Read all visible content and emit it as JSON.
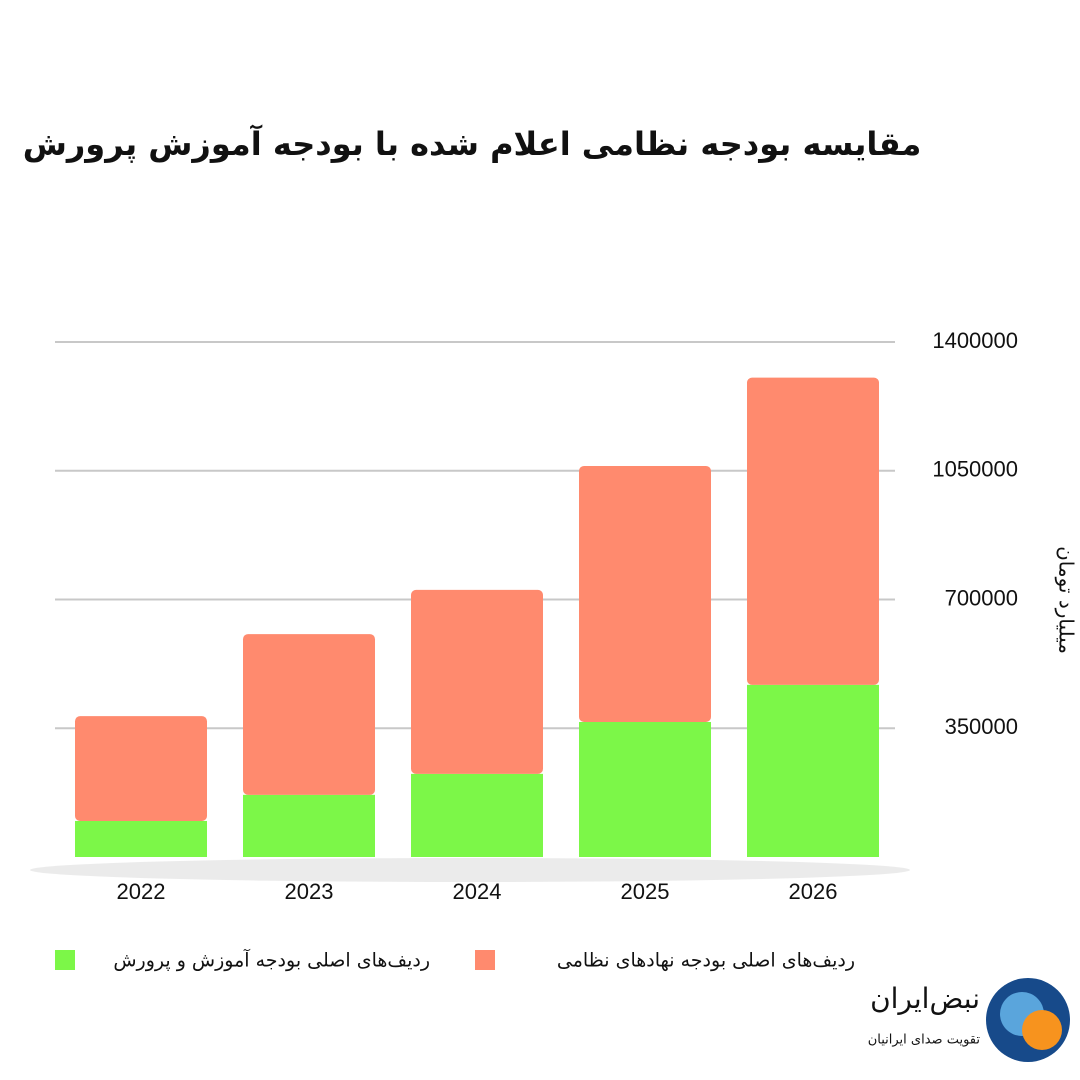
{
  "chart_data": {
    "type": "stacked_bar",
    "title": "مقایسه بودجه نظامی اعلام شده با بودجه آموزش پرورش",
    "y_axis_label": "میلیارد تومان",
    "categories": [
      "2022",
      "2023",
      "2024",
      "2025",
      "2026"
    ],
    "series": [
      {
        "name": "ردیف‌های اصلی بودجه آموزش و پرورش",
        "color": "#7cf748",
        "values": [
          98000,
          169000,
          226000,
          367000,
          468000
        ]
      },
      {
        "name": "ردیف‌های اصلی بودجه نهادهای نظامی",
        "color": "#ff8a6e",
        "values": [
          285000,
          437000,
          500000,
          696000,
          835000
        ]
      }
    ],
    "ylim": [
      0,
      1400000
    ],
    "yticks": [
      350000,
      700000,
      1050000,
      1400000
    ],
    "grid": true
  },
  "logo": {
    "name": "نبض‌ایران",
    "tagline": "تقویت صدای ایرانیان"
  }
}
